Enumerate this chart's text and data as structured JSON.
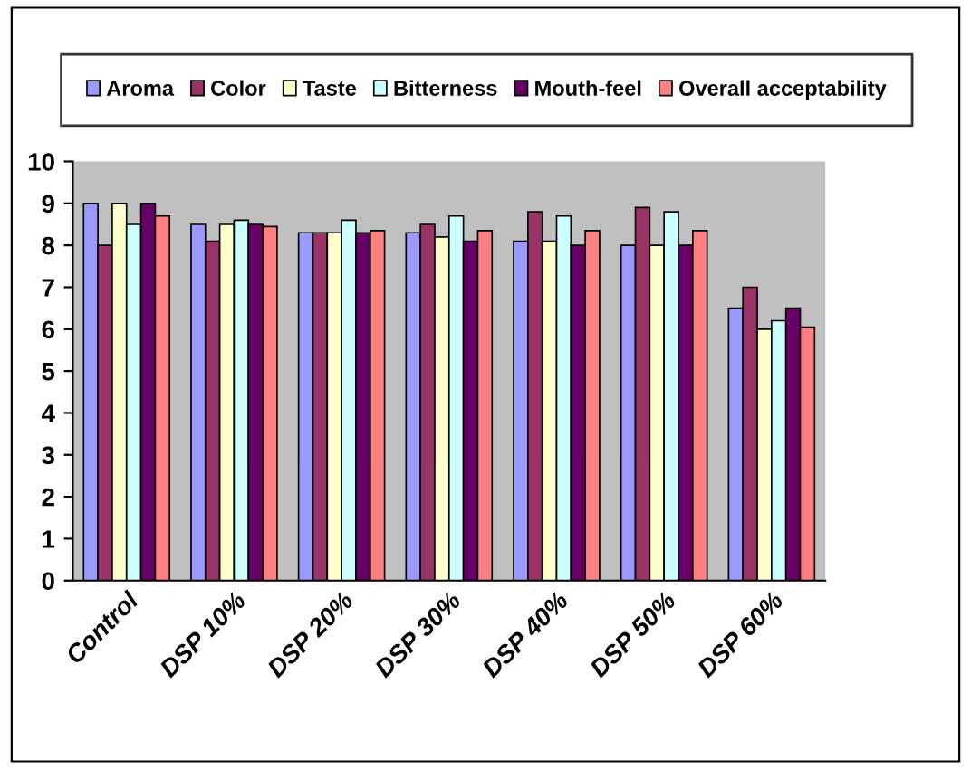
{
  "chart_data": {
    "type": "bar",
    "categories": [
      "Control",
      "DSP 10%",
      "DSP 20%",
      "DSP 30%",
      "DSP 40%",
      "DSP 50%",
      "DSP 60%"
    ],
    "series": [
      {
        "name": "Aroma",
        "color": "#9999ff",
        "values": [
          9,
          8.5,
          8.3,
          8.3,
          8.1,
          8.0,
          6.5
        ]
      },
      {
        "name": "Color",
        "color": "#993366",
        "values": [
          8,
          8.1,
          8.3,
          8.5,
          8.8,
          8.9,
          7.0
        ]
      },
      {
        "name": "Taste",
        "color": "#ffffcc",
        "values": [
          9,
          8.5,
          8.3,
          8.2,
          8.1,
          8.0,
          6.0
        ]
      },
      {
        "name": "Bitterness",
        "color": "#ccffff",
        "values": [
          8.5,
          8.6,
          8.6,
          8.7,
          8.7,
          8.8,
          6.2
        ]
      },
      {
        "name": "Mouth-feel",
        "color": "#660066",
        "values": [
          9,
          8.5,
          8.3,
          8.1,
          8.0,
          8.0,
          6.5
        ]
      },
      {
        "name": "Overall acceptability",
        "color": "#ff8080",
        "values": [
          8.7,
          8.45,
          8.35,
          8.35,
          8.35,
          8.35,
          6.05
        ]
      }
    ],
    "ylim": [
      0,
      10
    ],
    "yticks": [
      0,
      1,
      2,
      3,
      4,
      5,
      6,
      7,
      8,
      9,
      10
    ],
    "grid": false,
    "legend": "top"
  }
}
